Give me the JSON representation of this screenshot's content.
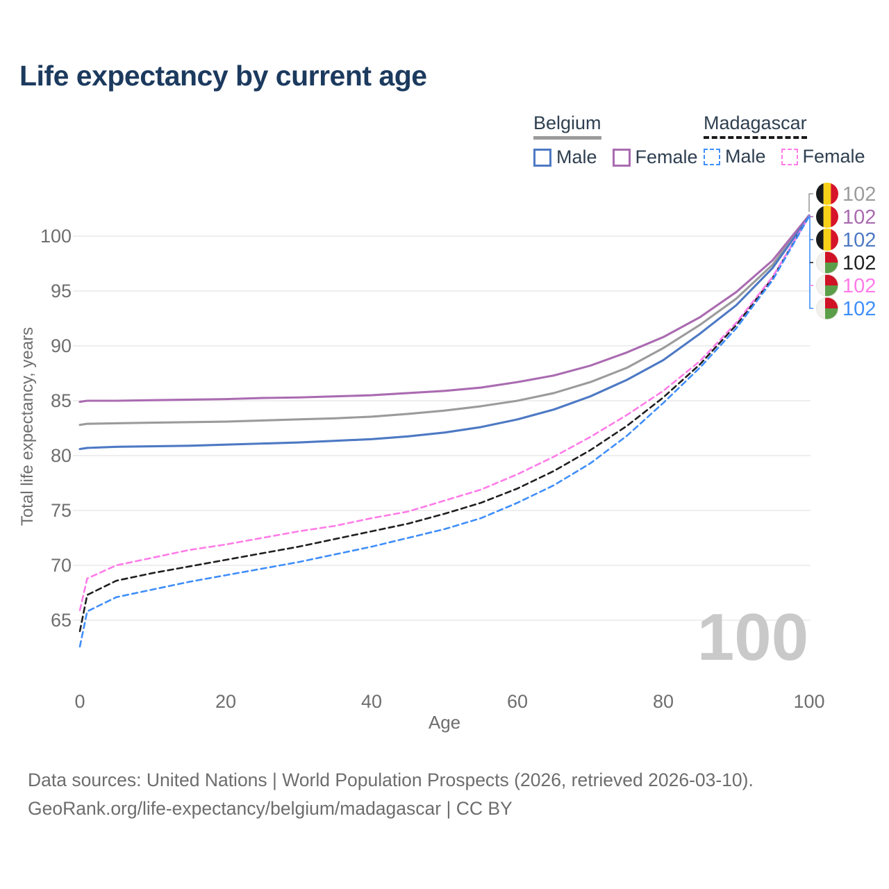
{
  "title": "Life expectancy by current age",
  "legend": {
    "belgium": {
      "label": "Belgium",
      "male": "Male",
      "female": "Female"
    },
    "madagascar": {
      "label": "Madagascar",
      "male": "Male",
      "female": "Female"
    }
  },
  "watermark": "100",
  "footer": {
    "line1": "Data sources: United Nations | World Population Prospects (2026, retrieved 2026-03-10).",
    "line2": "GeoRank.org/life-expectancy/belgium/madagascar | CC BY"
  },
  "colors": {
    "title": "#1c3a5e",
    "legend_text": "#2e3f50",
    "axis_text": "#6e6e6e",
    "grid": "#e9e9e9",
    "watermark": "#c9c9c9",
    "footer_text": "#6d6d6d",
    "belgium_underline": "#9b9b9b",
    "madagascar_underline": "#1a1a1a"
  },
  "chart_data": {
    "type": "line",
    "title": "Life expectancy by current age",
    "xlabel": "Age",
    "ylabel": "Total life expectancy, years",
    "x_ticks": [
      0,
      20,
      40,
      60,
      80,
      100
    ],
    "y_ticks": [
      65,
      70,
      75,
      80,
      85,
      90,
      95,
      100
    ],
    "xlim": [
      0,
      100
    ],
    "ylim": [
      62,
      103
    ],
    "grid": "horizontal",
    "legend_position": "top-right",
    "ages": [
      0,
      1,
      5,
      10,
      15,
      20,
      25,
      30,
      35,
      40,
      45,
      50,
      55,
      60,
      65,
      70,
      75,
      80,
      85,
      90,
      95,
      100
    ],
    "series": [
      {
        "name": "Belgium Both sexes",
        "flag": "belgium",
        "color": "#9b9b9b",
        "dashed": false,
        "end_label": "102",
        "values": [
          82.8,
          82.9,
          82.95,
          83.0,
          83.05,
          83.1,
          83.2,
          83.3,
          83.4,
          83.55,
          83.8,
          84.1,
          84.5,
          85.0,
          85.7,
          86.7,
          88.0,
          89.8,
          91.9,
          94.3,
          97.4,
          101.9
        ]
      },
      {
        "name": "Belgium Female",
        "flag": "belgium",
        "color": "#aa6bb1",
        "dashed": false,
        "end_label": "102",
        "values": [
          84.9,
          85.0,
          85.0,
          85.05,
          85.1,
          85.15,
          85.25,
          85.3,
          85.4,
          85.5,
          85.7,
          85.9,
          86.2,
          86.7,
          87.3,
          88.2,
          89.4,
          90.8,
          92.6,
          94.9,
          97.8,
          101.9
        ]
      },
      {
        "name": "Belgium Male",
        "flag": "belgium",
        "color": "#4d79c4",
        "dashed": false,
        "end_label": "102",
        "values": [
          80.6,
          80.7,
          80.8,
          80.85,
          80.9,
          81.0,
          81.1,
          81.2,
          81.35,
          81.5,
          81.75,
          82.1,
          82.6,
          83.3,
          84.2,
          85.4,
          86.9,
          88.7,
          91.1,
          93.7,
          97.1,
          101.8
        ]
      },
      {
        "name": "Madagascar Both sexes",
        "flag": "madagascar",
        "color": "#1f1f1f",
        "dashed": true,
        "end_label": "102",
        "values": [
          64.0,
          67.3,
          68.6,
          69.3,
          69.9,
          70.5,
          71.1,
          71.7,
          72.4,
          73.1,
          73.8,
          74.7,
          75.7,
          77.0,
          78.6,
          80.5,
          82.7,
          85.3,
          88.3,
          91.9,
          96.2,
          101.8
        ]
      },
      {
        "name": "Madagascar Female",
        "flag": "madagascar",
        "color": "#ff7ce8",
        "dashed": true,
        "end_label": "102",
        "values": [
          65.9,
          68.8,
          70.0,
          70.7,
          71.4,
          71.9,
          72.5,
          73.1,
          73.6,
          74.3,
          74.9,
          75.9,
          76.9,
          78.3,
          79.9,
          81.7,
          83.7,
          85.9,
          88.6,
          92.1,
          96.3,
          101.8
        ]
      },
      {
        "name": "Madagascar Male",
        "flag": "madagascar",
        "color": "#3f8efa",
        "dashed": true,
        "end_label": "102",
        "values": [
          62.6,
          65.8,
          67.1,
          67.8,
          68.5,
          69.1,
          69.7,
          70.3,
          71.0,
          71.7,
          72.5,
          73.3,
          74.3,
          75.7,
          77.3,
          79.3,
          81.8,
          84.8,
          88.0,
          91.6,
          96.0,
          101.8
        ]
      }
    ],
    "flag_colors": {
      "belgium": [
        "#1a1a1a",
        "#f7d117",
        "#d6152b"
      ],
      "madagascar": [
        "#f2f0ec",
        "#cf1225",
        "#5b9e49"
      ]
    }
  }
}
